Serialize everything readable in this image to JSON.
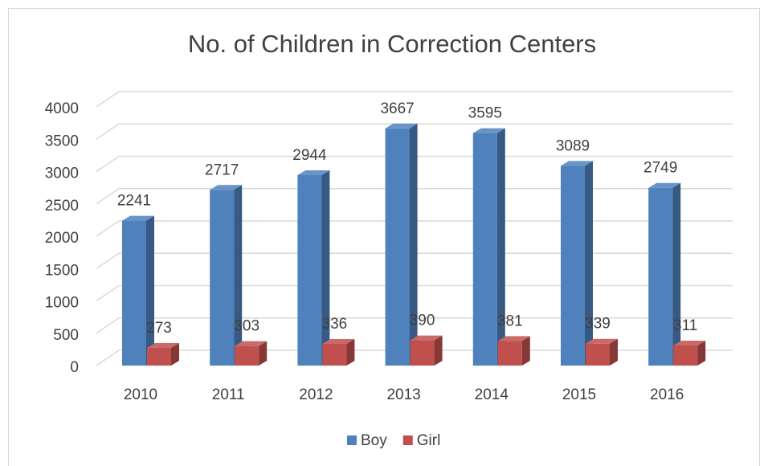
{
  "chart_data": {
    "type": "bar",
    "title": "No. of Children in Correction Centers",
    "categories": [
      "2010",
      "2011",
      "2012",
      "2013",
      "2014",
      "2015",
      "2016"
    ],
    "series": [
      {
        "name": "Boy",
        "color": "#4f81bd",
        "values": [
          2241,
          2717,
          2944,
          3667,
          3595,
          3089,
          2749
        ]
      },
      {
        "name": "Girl",
        "color": "#c0504d",
        "values": [
          273,
          303,
          336,
          390,
          381,
          339,
          311
        ]
      }
    ],
    "ylim": [
      0,
      4000
    ],
    "yticks": [
      0,
      500,
      1000,
      1500,
      2000,
      2500,
      3000,
      3500,
      4000
    ],
    "grid": true,
    "legend": "bottom"
  }
}
